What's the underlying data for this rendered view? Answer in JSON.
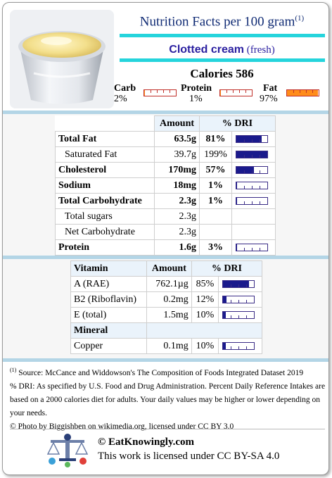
{
  "header": {
    "title": "Nutrition Facts per 100 gram",
    "title_sup": "(1)",
    "food_name": "Clotted cream",
    "food_variant": "(fresh)",
    "calories_label": "Calories 586"
  },
  "macros": [
    {
      "label": "Carb",
      "pct": "2%",
      "fraction": 0.02
    },
    {
      "label": "Protein",
      "pct": "1%",
      "fraction": 0.01
    },
    {
      "label": "Fat",
      "pct": "97%",
      "fraction": 0.97
    }
  ],
  "nutrients": {
    "col_amount": "Amount",
    "col_dri": "% DRI",
    "rows": [
      {
        "name": "Total Fat",
        "amount": "63.5g",
        "dri": "81%",
        "dri_value": 0.81,
        "bold": true
      },
      {
        "name": "Saturated Fat",
        "amount": "39.7g",
        "dri": "199%",
        "dri_value": 1.99,
        "bold": false
      },
      {
        "name": "Cholesterol",
        "amount": "170mg",
        "dri": "57%",
        "dri_value": 0.57,
        "bold": true
      },
      {
        "name": "Sodium",
        "amount": "18mg",
        "dri": "1%",
        "dri_value": 0.01,
        "bold": true
      },
      {
        "name": "Total Carbohydrate",
        "amount": "2.3g",
        "dri": "1%",
        "dri_value": 0.01,
        "bold": true
      },
      {
        "name": "Total sugars",
        "amount": "2.3g",
        "dri": "",
        "dri_value": null,
        "bold": false
      },
      {
        "name": "Net Carbohydrate",
        "amount": "2.3g",
        "dri": "",
        "dri_value": null,
        "bold": false
      },
      {
        "name": "Protein",
        "amount": "1.6g",
        "dri": "3%",
        "dri_value": 0.03,
        "bold": true
      }
    ]
  },
  "vitamins": {
    "col_name": "Vitamin",
    "col_amount": "Amount",
    "col_dri": "% DRI",
    "rows": [
      {
        "name": "A (RAE)",
        "amount": "762.1µg",
        "dri": "85%",
        "dri_value": 0.85
      },
      {
        "name": "B2 (Riboflavin)",
        "amount": "0.2mg",
        "dri": "12%",
        "dri_value": 0.12
      },
      {
        "name": "E (total)",
        "amount": "1.5mg",
        "dri": "10%",
        "dri_value": 0.1
      }
    ],
    "mineral_header": "Mineral",
    "minerals": [
      {
        "name": "Copper",
        "amount": "0.1mg",
        "dri": "10%",
        "dri_value": 0.1
      }
    ]
  },
  "footer": {
    "note_sup": "(1)",
    "source": "Source: McCance and Widdowson's The Composition of Foods Integrated Dataset 2019",
    "dri_note": "% DRI: As specified by U.S. Food and Drug Administration. Percent Daily Reference Intakes are based on a 2000 calories diet for adults. Your daily values may be higher or lower depending on your needs.",
    "photo_credit": "© Photo by Biggishben on wikimedia.org, licensed under CC BY 3.0",
    "site": "© EatKnowingly.com",
    "license": "This work is licensed under CC BY-SA 4.0"
  },
  "colors": {
    "title": "#102b74",
    "accent_rule": "#25d4dc",
    "macro_fill": "#ff8c1a",
    "dri_fill": "#1a1a8c",
    "band": "#b3d5e6"
  }
}
